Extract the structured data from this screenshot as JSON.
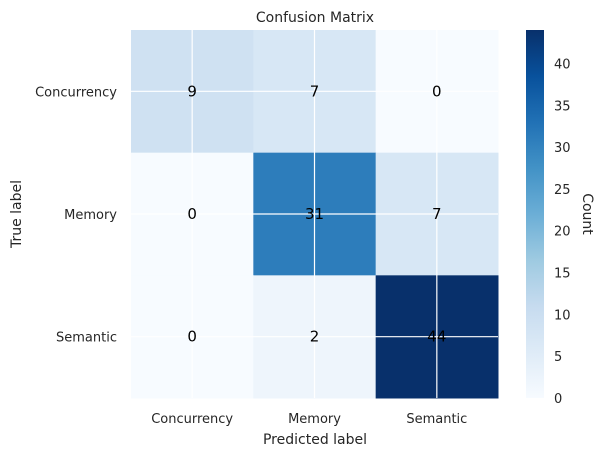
{
  "chart_data": {
    "type": "heatmap",
    "title": "Confusion Matrix",
    "xlabel": "Predicted label",
    "ylabel": "True label",
    "x_categories": [
      "Concurrency",
      "Memory",
      "Semantic"
    ],
    "y_categories": [
      "Concurrency",
      "Memory",
      "Semantic"
    ],
    "values": [
      [
        9,
        7,
        0
      ],
      [
        0,
        31,
        7
      ],
      [
        0,
        2,
        44
      ]
    ],
    "colormap": "Blues",
    "colorbar": {
      "label": "Count",
      "range": [
        0,
        44
      ],
      "ticks": [
        0,
        5,
        10,
        15,
        20,
        25,
        30,
        35,
        40
      ]
    },
    "grid": true
  }
}
